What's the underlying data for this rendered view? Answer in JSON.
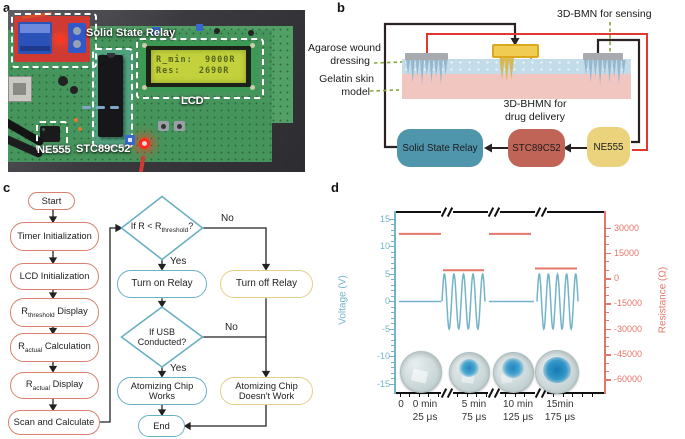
{
  "panels": {
    "a": "a",
    "b": "b",
    "c": "c",
    "d": "d"
  },
  "panel_a": {
    "labels": {
      "relay": "Solid State Relay",
      "lcd": "LCD",
      "mcu": "STC89C52",
      "timer": "NE555"
    },
    "lcd_screen": {
      "line1": "R_min:  9000R",
      "line2": "Res:   2690R"
    }
  },
  "panel_b": {
    "labels": {
      "sensing": "3D-BMN for sensing",
      "dressing1": "Agarose wound",
      "dressing2": "dressing",
      "skin1": "Gelatin skin",
      "skin2": "model",
      "delivery1": "3D-BHMN for",
      "delivery2": "drug delivery"
    },
    "blocks": {
      "relay": "Solid State Relay",
      "mcu": "STC89C52",
      "timer": "NE555"
    }
  },
  "panel_c": {
    "start": "Start",
    "step_timer": "Timer Initialization",
    "step_lcd": "LCD Initialization",
    "step_rt_pre": "R",
    "step_rt_sub": "threshold",
    "step_rt_post": " Display",
    "step_rc_pre": "R",
    "step_rc_sub": "actual",
    "step_rc_post": " Calculation",
    "step_rd_pre": "R",
    "step_rd_sub": "actual",
    "step_rd_post": " Display",
    "step_scan": "Scan and Calculate",
    "d1_pre": "If R < R",
    "d1_sub": "threshold",
    "d1_post": "?",
    "d2_line1": "If USB",
    "d2_line2": "Conducted?",
    "yes1": "Yes",
    "no1": "No",
    "yes2": "Yes",
    "no2": "No",
    "turn_on": "Turn on Relay",
    "turn_off": "Turn off Relay",
    "works1": "Atomizing Chip",
    "works2": "Works",
    "notwork1": "Atomizing Chip",
    "notwork2": "Doesn't Work",
    "end": "End"
  },
  "colors": {
    "chart_blue": "#74b4c9",
    "chart_red": "#e4776a",
    "flow_red_outline": "#d9806e",
    "flow_blue_outline": "#6ab0c4",
    "flow_yellow_outline": "#e6cd86",
    "block_teal": "#4f96ac",
    "block_salmon": "#c16458",
    "block_yellow": "#ead37c",
    "wire_red": "#e0372e",
    "wire_black": "#2a2220",
    "callout_green": "#85a43a",
    "dressing_blue": "#c3dcea",
    "skin_pink": "#f2c6c0",
    "pcb_green": "#46955c",
    "lcd_screen_green": "#c3d23c"
  },
  "chart_data": {
    "type": "line",
    "title": "",
    "left_axis": {
      "label": "Voltage (V)",
      "ticks": [
        15,
        10,
        5,
        0,
        -5,
        -10,
        -15
      ],
      "range": [
        -15,
        15
      ],
      "color": "#74b4c9"
    },
    "right_axis": {
      "label": "Resistance (Ω)",
      "ticks": [
        30000,
        15000,
        0,
        -15000,
        -30000,
        -45000,
        -60000
      ],
      "range": [
        -60000,
        30000
      ],
      "color": "#e4776a"
    },
    "x_ticks": [
      {
        "l1": "0",
        "l2": ""
      },
      {
        "l1": "0 min",
        "l2": "25 μs"
      },
      {
        "l1": "5 min",
        "l2": "75 μs"
      },
      {
        "l1": "10 min",
        "l2": "125 μs"
      },
      {
        "l1": "15min",
        "l2": "175 μs"
      }
    ],
    "axis_breaks": {
      "count": 3,
      "style": "//",
      "on": [
        "top",
        "bottom"
      ]
    },
    "series": [
      {
        "name": "Voltage",
        "color": "#74b4c9",
        "axis": "left",
        "segments": [
          {
            "type": "flat",
            "value": 0
          },
          {
            "type": "sine",
            "amplitude": 5,
            "cycles": 4.5
          },
          {
            "type": "flat",
            "value": 0
          },
          {
            "type": "sine",
            "amplitude": 5,
            "cycles": 4.5
          }
        ]
      },
      {
        "name": "Resistance",
        "color": "#e4776a",
        "axis": "right",
        "segments": [
          {
            "type": "flat",
            "value": 26500
          },
          {
            "type": "flat",
            "value": 5000
          },
          {
            "type": "flat",
            "value": 26500
          },
          {
            "type": "flat",
            "value": 6000
          }
        ]
      }
    ]
  }
}
